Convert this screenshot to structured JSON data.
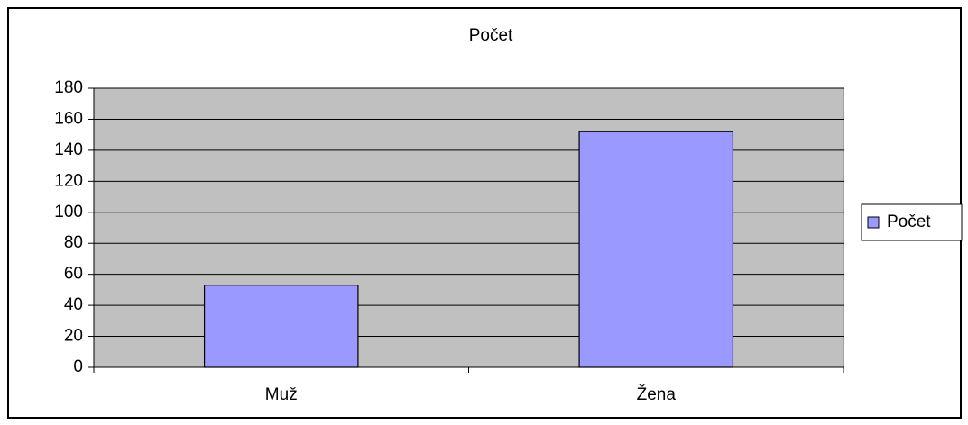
{
  "chart_data": {
    "type": "bar",
    "title": "Počet",
    "categories": [
      "Muž",
      "Žena"
    ],
    "series": [
      {
        "name": "Počet",
        "color": "#9999ff",
        "values": [
          53,
          152
        ]
      }
    ],
    "ylim": [
      0,
      180
    ],
    "yticks": [
      0,
      20,
      40,
      60,
      80,
      100,
      120,
      140,
      160,
      180
    ],
    "grid": true,
    "legend": "right"
  }
}
